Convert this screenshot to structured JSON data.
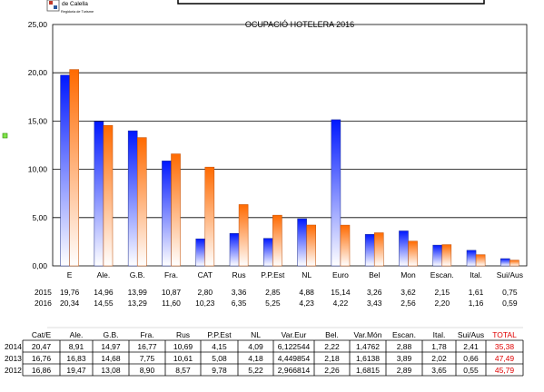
{
  "header": {
    "logo_text": "de Calella",
    "logo_subtext": "Regidoria de Turisme"
  },
  "colors": {
    "series_2015_top": "#0018ff",
    "series_2015_bottom": "#ffffff",
    "series_2016_top": "#ff6a00",
    "series_2016_bottom": "#ffffff",
    "gridline": "#000000",
    "total": "#e00000"
  },
  "chart_data": {
    "type": "bar",
    "title": "OCUPACIÓ HOTELERA 2016",
    "xlabel": "",
    "ylabel": "",
    "ylim": [
      0,
      25
    ],
    "yticks": [
      "0,00",
      "5,00",
      "10,00",
      "15,00",
      "20,00",
      "25,00"
    ],
    "grid": true,
    "categories": [
      "E",
      "Ale.",
      "G.B.",
      "Fra.",
      "CAT",
      "Rus",
      "P.P.Est",
      "NL",
      "Euro",
      "Bel",
      "Mon",
      "Escan.",
      "Ital.",
      "Sui/Aus"
    ],
    "series": [
      {
        "name": "2015",
        "values": [
          19.76,
          14.96,
          13.99,
          10.87,
          2.8,
          3.36,
          2.85,
          4.88,
          15.14,
          3.26,
          3.62,
          2.15,
          1.61,
          0.75
        ],
        "labels": [
          "19,76",
          "14,96",
          "13,99",
          "10,87",
          "2,80",
          "3,36",
          "2,85",
          "4,88",
          "15,14",
          "3,26",
          "3,62",
          "2,15",
          "1,61",
          "0,75"
        ]
      },
      {
        "name": "2016",
        "values": [
          20.34,
          14.55,
          13.29,
          11.6,
          10.23,
          6.35,
          5.25,
          4.23,
          4.22,
          3.43,
          2.56,
          2.2,
          1.16,
          0.59
        ],
        "labels": [
          "20,34",
          "14,55",
          "13,29",
          "11,60",
          "10,23",
          "6,35",
          "5,25",
          "4,23",
          "4,22",
          "3,43",
          "2,56",
          "2,20",
          "1,16",
          "0,59"
        ]
      }
    ]
  },
  "table": {
    "headers": [
      "Cat/E",
      "Ale.",
      "G.B.",
      "Fra.",
      "Rus",
      "P.P.Est",
      "NL",
      "Var.Eur",
      "Bel.",
      "Var.Món",
      "Escan.",
      "Ital.",
      "Sui/Aus",
      "TOTAL"
    ],
    "rows": [
      {
        "year": "2014",
        "cells": [
          "20,47",
          "8,91",
          "14,97",
          "16,77",
          "10,69",
          "4,15",
          "4,09",
          "6,122544",
          "2,22",
          "1,4762",
          "2,88",
          "1,78",
          "2,41",
          "35,38"
        ]
      },
      {
        "year": "2013",
        "cells": [
          "16,76",
          "16,83",
          "14,68",
          "7,75",
          "10,61",
          "5,08",
          "4,18",
          "4,449854",
          "2,18",
          "1,6138",
          "3,89",
          "2,02",
          "0,66",
          "47,49"
        ]
      },
      {
        "year": "2012",
        "cells": [
          "16,86",
          "19,47",
          "13,08",
          "8,90",
          "8,57",
          "9,78",
          "5,22",
          "2,966814",
          "2,26",
          "1,6815",
          "2,89",
          "3,65",
          "0,55",
          "45,79"
        ]
      }
    ]
  }
}
